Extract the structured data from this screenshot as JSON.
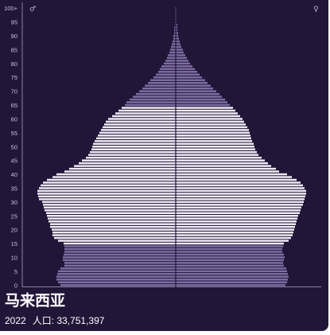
{
  "colors": {
    "background": "#221638",
    "bar_light": "#eeeaf4",
    "bar_dark": "#7e6da3",
    "axis": "#8d80ab",
    "text": "#ffffff"
  },
  "info": {
    "title": "马来西亚",
    "year": "2022",
    "population_label": "人口: 33,751,397"
  },
  "chart_data": {
    "type": "bar",
    "orientation": "horizontal-population-pyramid",
    "male_symbol": "♂",
    "female_symbol": "♀",
    "y_ticks": [
      "0",
      "5",
      "10",
      "15",
      "20",
      "25",
      "30",
      "35",
      "40",
      "45",
      "50",
      "55",
      "60",
      "65",
      "70",
      "75",
      "80",
      "85",
      "90",
      "95",
      "100+"
    ],
    "ages_range": [
      0,
      100
    ],
    "shade_dark_age_ranges": [
      [
        0,
        14
      ],
      [
        65,
        100
      ]
    ],
    "series": [
      {
        "name": "♂",
        "values": [
          145,
          148,
          150,
          150,
          149,
          148,
          145,
          140,
          140,
          142,
          142,
          141,
          140,
          140,
          140,
          141,
          148,
          153,
          155,
          155,
          156,
          158,
          158,
          160,
          161,
          162,
          163,
          165,
          166,
          167,
          168,
          172,
          173,
          174,
          174,
          172,
          170,
          167,
          162,
          155,
          150,
          140,
          134,
          128,
          122,
          118,
          113,
          110,
          108,
          106,
          105,
          104,
          102,
          100,
          98,
          96,
          94,
          92,
          90,
          88,
          85,
          80,
          76,
          72,
          68,
          64,
          62,
          58,
          54,
          50,
          46,
          42,
          39,
          35,
          32,
          28,
          25,
          22,
          20,
          18,
          15,
          13,
          11,
          10,
          8,
          7,
          6,
          5,
          4,
          3,
          3,
          2,
          2,
          2,
          1,
          1,
          1,
          1,
          1,
          1,
          1
        ]
      },
      {
        "name": "♀",
        "values": [
          138,
          140,
          141,
          142,
          141,
          140,
          139,
          136,
          135,
          136,
          137,
          136,
          134,
          134,
          135,
          136,
          142,
          145,
          147,
          148,
          149,
          150,
          151,
          152,
          153,
          154,
          156,
          157,
          158,
          160,
          161,
          162,
          163,
          164,
          164,
          162,
          160,
          157,
          152,
          146,
          140,
          130,
          126,
          120,
          116,
          112,
          108,
          104,
          102,
          100,
          99,
          98,
          96,
          95,
          94,
          93,
          92,
          90,
          88,
          86,
          84,
          81,
          78,
          75,
          72,
          68,
          65,
          62,
          58,
          55,
          51,
          47,
          44,
          40,
          37,
          33,
          30,
          27,
          24,
          21,
          18,
          16,
          14,
          12,
          10,
          9,
          7,
          6,
          5,
          4,
          3,
          3,
          2,
          2,
          2,
          1,
          1,
          1,
          1,
          1,
          1
        ]
      }
    ]
  }
}
